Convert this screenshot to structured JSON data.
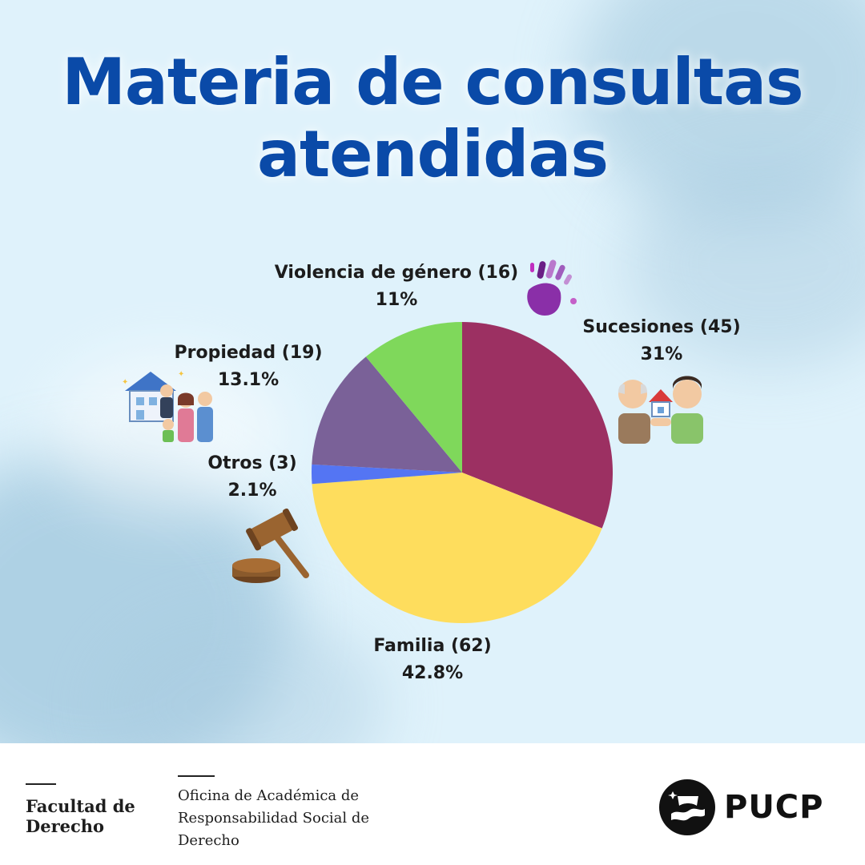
{
  "title": {
    "line1": "Materia de consultas",
    "line2": "atendidas"
  },
  "chart_data": {
    "type": "pie",
    "title": "Materia de consultas atendidas",
    "slices": [
      {
        "label": "Sucesiones (45)",
        "name": "Sucesiones",
        "value": 45,
        "percent": "31%",
        "color": "#9c3062"
      },
      {
        "label": "Familia (62)",
        "name": "Familia",
        "value": 62,
        "percent": "42.8%",
        "color": "#fedd5d"
      },
      {
        "label": "Otros (3)",
        "name": "Otros",
        "value": 3,
        "percent": "2.1%",
        "color": "#5475f3"
      },
      {
        "label": "Propiedad (19)",
        "name": "Propiedad",
        "value": 19,
        "percent": "13.1%",
        "color": "#7a6198"
      },
      {
        "label": "Violencia de género (16)",
        "name": "Violencia de género",
        "value": 16,
        "percent": "11%",
        "color": "#7fd85b"
      }
    ],
    "start_angle": "top",
    "direction": "clockwise"
  },
  "illustrations": {
    "violencia": "purple-handprint-icon",
    "sucesiones": "elderly-man-handing-house-icon",
    "propiedad": "family-with-house-icon",
    "otros": "judge-gavel-icon"
  },
  "footer": {
    "faculty": [
      "Facultad de",
      "Derecho"
    ],
    "office": [
      "Oficina de Académica de",
      "Responsabilidad Social de",
      "Derecho"
    ],
    "brand": "PUCP"
  }
}
